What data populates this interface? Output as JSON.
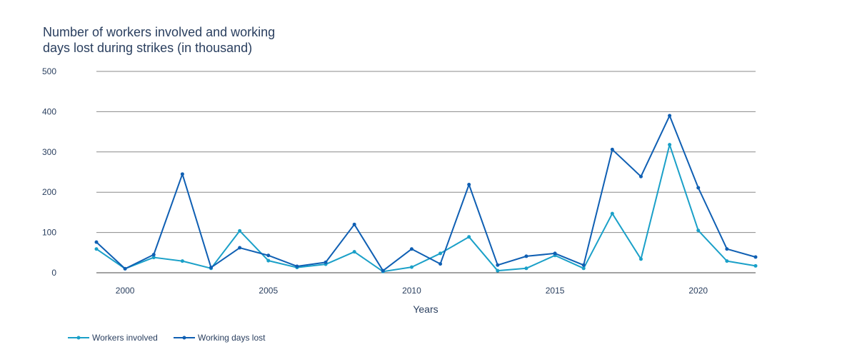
{
  "chart_data": {
    "type": "line",
    "title_lines": [
      "Number of workers involved and working",
      "days lost during strikes (in thousand)"
    ],
    "xlabel": "Years",
    "ylabel": "",
    "xlim": [
      1999,
      2022
    ],
    "ylim": [
      0,
      500
    ],
    "xticks": [
      2000,
      2005,
      2010,
      2015,
      2020
    ],
    "yticks": [
      0,
      100,
      200,
      300,
      400,
      500
    ],
    "grid": "horizontal",
    "legend_position": "bottom-left",
    "x": [
      1999,
      2000,
      2001,
      2002,
      2003,
      2004,
      2005,
      2006,
      2007,
      2008,
      2009,
      2010,
      2011,
      2012,
      2013,
      2014,
      2015,
      2016,
      2017,
      2018,
      2019,
      2020,
      2021,
      2022
    ],
    "series": [
      {
        "name": "Workers involved",
        "color": "#1aa0c8",
        "values": [
          59,
          10,
          38,
          29,
          11,
          104,
          30,
          13,
          21,
          52,
          3,
          14,
          48,
          89,
          5,
          11,
          43,
          11,
          147,
          34,
          318,
          105,
          29,
          17
        ]
      },
      {
        "name": "Working days lost",
        "color": "#0f5fb3",
        "values": [
          76,
          10,
          45,
          245,
          13,
          62,
          43,
          16,
          26,
          120,
          5,
          59,
          22,
          219,
          19,
          41,
          48,
          19,
          306,
          239,
          390,
          211,
          59,
          39
        ]
      }
    ]
  }
}
